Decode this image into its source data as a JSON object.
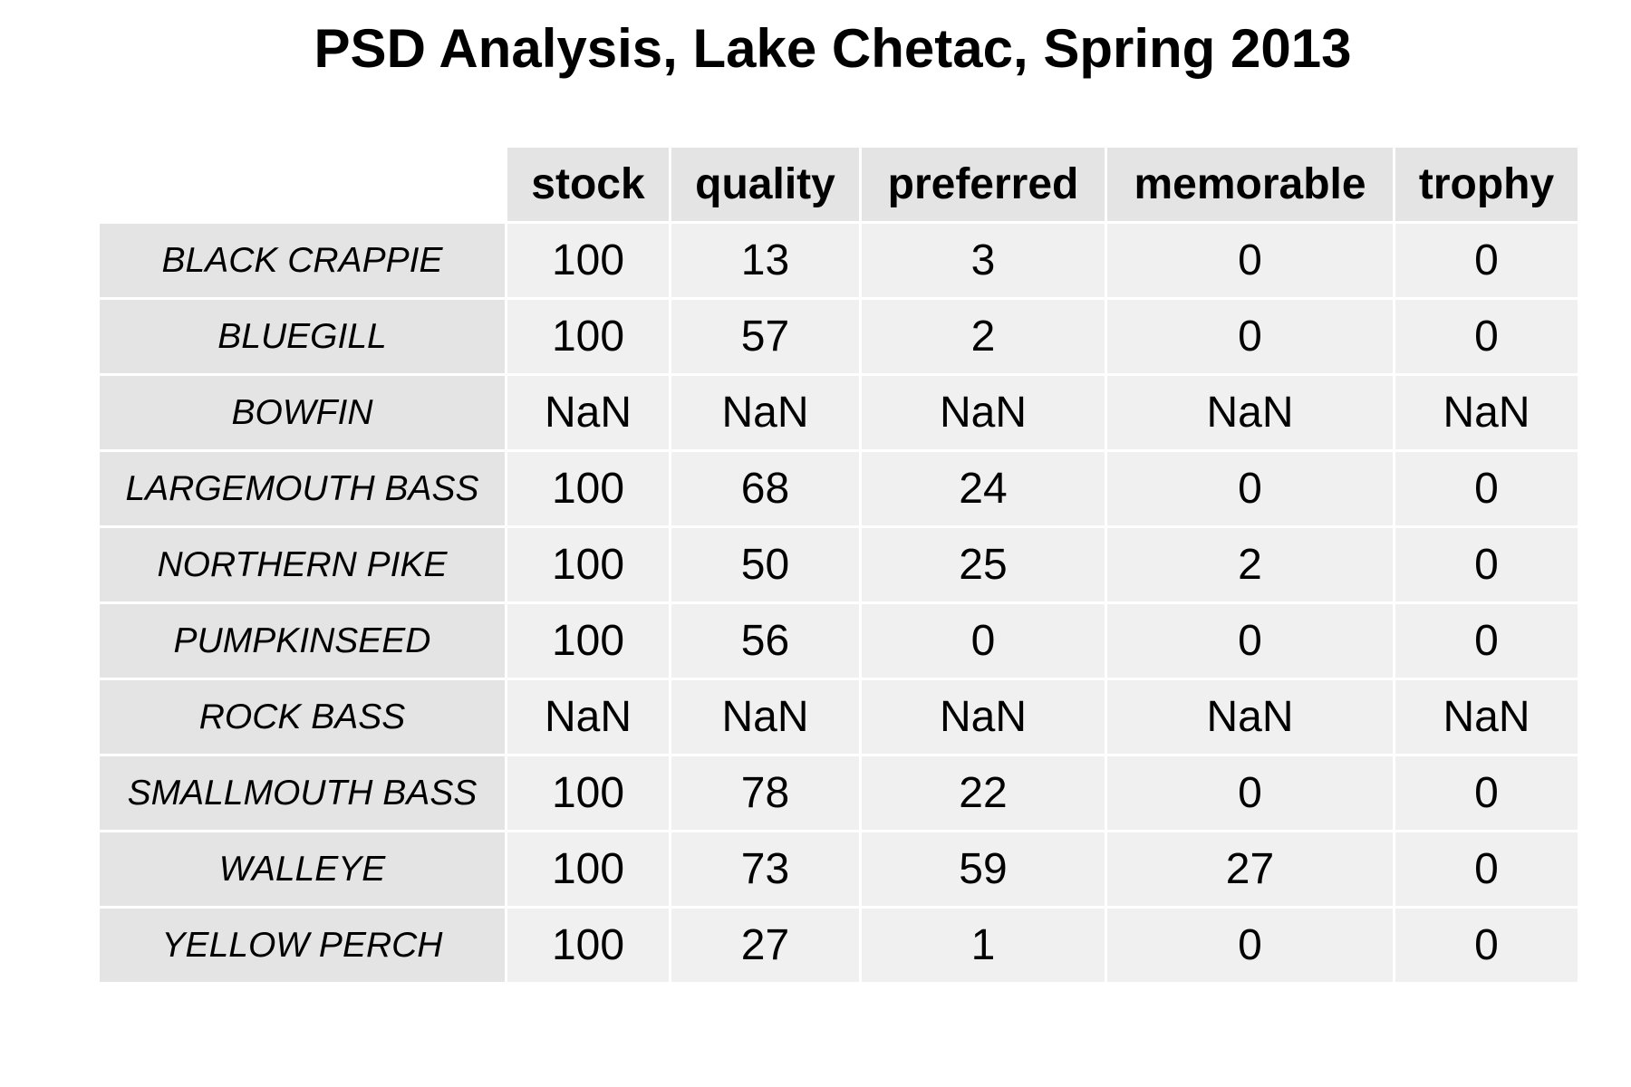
{
  "chart_data": {
    "type": "table",
    "title": "PSD Analysis, Lake Chetac, Spring 2013",
    "columns": [
      "stock",
      "quality",
      "preferred",
      "memorable",
      "trophy"
    ],
    "rows": [
      {
        "label": "BLACK CRAPPIE",
        "values": [
          "100",
          "13",
          "3",
          "0",
          "0"
        ]
      },
      {
        "label": "BLUEGILL",
        "values": [
          "100",
          "57",
          "2",
          "0",
          "0"
        ]
      },
      {
        "label": "BOWFIN",
        "values": [
          "NaN",
          "NaN",
          "NaN",
          "NaN",
          "NaN"
        ]
      },
      {
        "label": "LARGEMOUTH BASS",
        "values": [
          "100",
          "68",
          "24",
          "0",
          "0"
        ]
      },
      {
        "label": "NORTHERN PIKE",
        "values": [
          "100",
          "50",
          "25",
          "2",
          "0"
        ]
      },
      {
        "label": "PUMPKINSEED",
        "values": [
          "100",
          "56",
          "0",
          "0",
          "0"
        ]
      },
      {
        "label": "ROCK BASS",
        "values": [
          "NaN",
          "NaN",
          "NaN",
          "NaN",
          "NaN"
        ]
      },
      {
        "label": "SMALLMOUTH BASS",
        "values": [
          "100",
          "78",
          "22",
          "0",
          "0"
        ]
      },
      {
        "label": "WALLEYE",
        "values": [
          "100",
          "73",
          "59",
          "27",
          "0"
        ]
      },
      {
        "label": "YELLOW PERCH",
        "values": [
          "100",
          "27",
          "1",
          "0",
          "0"
        ]
      }
    ]
  },
  "colors": {
    "header_fill": "#e4e4e4",
    "cell_fill": "#f0f0f0",
    "background": "#ffffff"
  }
}
